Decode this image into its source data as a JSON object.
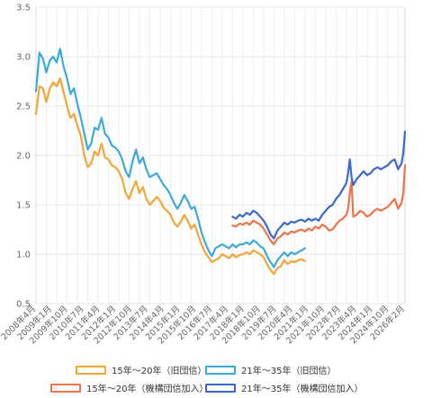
{
  "chart_data": {
    "type": "line",
    "title": "",
    "xlabel": "",
    "ylabel": "",
    "ylim": [
      0.5,
      3.5
    ],
    "yticks": [
      "0.5",
      "1.0",
      "1.5",
      "2.0",
      "2.5",
      "3.0",
      "3.5"
    ],
    "grid": true,
    "legend_position": "bottom",
    "x_tick_labels": [
      "2008年4月",
      "2009年1月",
      "2009年10月",
      "2010年7月",
      "2011年4月",
      "2012年1月",
      "2012年10月",
      "2013年7月",
      "2014年4月",
      "2015年1月",
      "2015年10月",
      "2016年7月",
      "2017年4月",
      "2018年1月",
      "2018年10月",
      "2019年7月",
      "2020年4月",
      "2021年1月",
      "2021年10月",
      "2022年7月",
      "2023年4月",
      "2024年1月",
      "2024年10月",
      "2026年2月"
    ],
    "series": [
      {
        "name": "15年～20年（旧団信）",
        "color": "#f5a537",
        "points": [
          [
            "2008-04",
            2.42
          ],
          [
            "2008-06",
            2.7
          ],
          [
            "2008-08",
            2.68
          ],
          [
            "2008-10",
            2.54
          ],
          [
            "2008-12",
            2.68
          ],
          [
            "2009-02",
            2.74
          ],
          [
            "2009-04",
            2.7
          ],
          [
            "2009-06",
            2.78
          ],
          [
            "2009-08",
            2.64
          ],
          [
            "2009-10",
            2.5
          ],
          [
            "2009-12",
            2.38
          ],
          [
            "2010-02",
            2.42
          ],
          [
            "2010-04",
            2.3
          ],
          [
            "2010-06",
            2.2
          ],
          [
            "2010-08",
            2.0
          ],
          [
            "2010-10",
            1.88
          ],
          [
            "2010-12",
            1.92
          ],
          [
            "2011-02",
            2.04
          ],
          [
            "2011-04",
            2.0
          ],
          [
            "2011-06",
            2.12
          ],
          [
            "2011-08",
            1.98
          ],
          [
            "2011-10",
            1.96
          ],
          [
            "2011-12",
            1.9
          ],
          [
            "2012-02",
            1.88
          ],
          [
            "2012-04",
            1.84
          ],
          [
            "2012-06",
            1.76
          ],
          [
            "2012-08",
            1.62
          ],
          [
            "2012-10",
            1.56
          ],
          [
            "2012-12",
            1.66
          ],
          [
            "2013-02",
            1.74
          ],
          [
            "2013-04",
            1.62
          ],
          [
            "2013-06",
            1.68
          ],
          [
            "2013-08",
            1.56
          ],
          [
            "2013-10",
            1.5
          ],
          [
            "2013-12",
            1.54
          ],
          [
            "2014-02",
            1.58
          ],
          [
            "2014-04",
            1.54
          ],
          [
            "2014-06",
            1.47
          ],
          [
            "2014-08",
            1.44
          ],
          [
            "2014-10",
            1.4
          ],
          [
            "2014-12",
            1.32
          ],
          [
            "2015-02",
            1.28
          ],
          [
            "2015-04",
            1.33
          ],
          [
            "2015-06",
            1.4
          ],
          [
            "2015-08",
            1.34
          ],
          [
            "2015-10",
            1.26
          ],
          [
            "2015-12",
            1.3
          ],
          [
            "2016-02",
            1.2
          ],
          [
            "2016-04",
            1.1
          ],
          [
            "2016-06",
            1.02
          ],
          [
            "2016-08",
            0.97
          ],
          [
            "2016-10",
            0.92
          ],
          [
            "2016-12",
            0.94
          ],
          [
            "2017-02",
            0.96
          ],
          [
            "2017-04",
            1.0
          ],
          [
            "2017-06",
            0.98
          ],
          [
            "2017-08",
            0.96
          ],
          [
            "2017-10",
            1.0
          ],
          [
            "2017-12",
            0.97
          ],
          [
            "2018-02",
            0.99
          ],
          [
            "2018-04",
            1.0
          ],
          [
            "2018-06",
            1.02
          ],
          [
            "2018-08",
            1.0
          ],
          [
            "2018-10",
            1.04
          ],
          [
            "2018-12",
            1.02
          ],
          [
            "2019-02",
            1.0
          ],
          [
            "2019-04",
            0.97
          ],
          [
            "2019-06",
            0.9
          ],
          [
            "2019-08",
            0.84
          ],
          [
            "2019-10",
            0.8
          ],
          [
            "2019-12",
            0.86
          ],
          [
            "2020-02",
            0.88
          ],
          [
            "2020-04",
            0.94
          ],
          [
            "2020-06",
            0.9
          ],
          [
            "2020-08",
            0.93
          ],
          [
            "2020-10",
            0.92
          ],
          [
            "2020-12",
            0.94
          ],
          [
            "2021-02",
            0.95
          ],
          [
            "2021-04",
            0.93
          ]
        ]
      },
      {
        "name": "21年～35年（旧団信）",
        "color": "#3ba9dd",
        "points": [
          [
            "2008-04",
            2.65
          ],
          [
            "2008-06",
            3.04
          ],
          [
            "2008-08",
            2.98
          ],
          [
            "2008-10",
            2.84
          ],
          [
            "2008-12",
            2.96
          ],
          [
            "2009-02",
            3.0
          ],
          [
            "2009-04",
            2.94
          ],
          [
            "2009-06",
            3.08
          ],
          [
            "2009-08",
            2.9
          ],
          [
            "2009-10",
            2.78
          ],
          [
            "2009-12",
            2.62
          ],
          [
            "2010-02",
            2.68
          ],
          [
            "2010-04",
            2.52
          ],
          [
            "2010-06",
            2.38
          ],
          [
            "2010-08",
            2.22
          ],
          [
            "2010-10",
            2.06
          ],
          [
            "2010-12",
            2.12
          ],
          [
            "2011-02",
            2.28
          ],
          [
            "2011-04",
            2.26
          ],
          [
            "2011-06",
            2.38
          ],
          [
            "2011-08",
            2.22
          ],
          [
            "2011-10",
            2.18
          ],
          [
            "2011-12",
            2.1
          ],
          [
            "2012-02",
            2.08
          ],
          [
            "2012-04",
            2.04
          ],
          [
            "2012-06",
            1.96
          ],
          [
            "2012-08",
            1.84
          ],
          [
            "2012-10",
            1.78
          ],
          [
            "2012-12",
            1.94
          ],
          [
            "2013-02",
            2.06
          ],
          [
            "2013-04",
            1.92
          ],
          [
            "2013-06",
            1.98
          ],
          [
            "2013-08",
            1.86
          ],
          [
            "2013-10",
            1.78
          ],
          [
            "2013-12",
            1.8
          ],
          [
            "2014-02",
            1.82
          ],
          [
            "2014-04",
            1.76
          ],
          [
            "2014-06",
            1.7
          ],
          [
            "2014-08",
            1.66
          ],
          [
            "2014-10",
            1.6
          ],
          [
            "2014-12",
            1.52
          ],
          [
            "2015-02",
            1.46
          ],
          [
            "2015-04",
            1.52
          ],
          [
            "2015-06",
            1.6
          ],
          [
            "2015-08",
            1.54
          ],
          [
            "2015-10",
            1.46
          ],
          [
            "2015-12",
            1.48
          ],
          [
            "2016-02",
            1.36
          ],
          [
            "2016-04",
            1.22
          ],
          [
            "2016-06",
            1.12
          ],
          [
            "2016-08",
            1.04
          ],
          [
            "2016-10",
            0.98
          ],
          [
            "2016-12",
            1.06
          ],
          [
            "2017-02",
            1.08
          ],
          [
            "2017-04",
            1.1
          ],
          [
            "2017-06",
            1.08
          ],
          [
            "2017-08",
            1.06
          ],
          [
            "2017-10",
            1.1
          ],
          [
            "2017-12",
            1.07
          ],
          [
            "2018-02",
            1.1
          ],
          [
            "2018-04",
            1.1
          ],
          [
            "2018-06",
            1.12
          ],
          [
            "2018-08",
            1.1
          ],
          [
            "2018-10",
            1.14
          ],
          [
            "2018-12",
            1.12
          ],
          [
            "2019-02",
            1.08
          ],
          [
            "2019-04",
            1.06
          ],
          [
            "2019-06",
            0.98
          ],
          [
            "2019-08",
            0.92
          ],
          [
            "2019-10",
            0.87
          ],
          [
            "2019-12",
            0.94
          ],
          [
            "2020-02",
            0.98
          ],
          [
            "2020-04",
            1.02
          ],
          [
            "2020-06",
            0.98
          ],
          [
            "2020-08",
            1.02
          ],
          [
            "2020-10",
            1.0
          ],
          [
            "2020-12",
            1.02
          ],
          [
            "2021-02",
            1.04
          ],
          [
            "2021-04",
            1.06
          ]
        ]
      },
      {
        "name": "15年～20年（機構団信加入）",
        "color": "#ee7348",
        "points": [
          [
            "2017-10",
            1.29
          ],
          [
            "2017-12",
            1.28
          ],
          [
            "2018-02",
            1.31
          ],
          [
            "2018-04",
            1.3
          ],
          [
            "2018-06",
            1.32
          ],
          [
            "2018-08",
            1.3
          ],
          [
            "2018-10",
            1.34
          ],
          [
            "2018-12",
            1.32
          ],
          [
            "2019-02",
            1.3
          ],
          [
            "2019-04",
            1.26
          ],
          [
            "2019-06",
            1.2
          ],
          [
            "2019-08",
            1.14
          ],
          [
            "2019-10",
            1.1
          ],
          [
            "2019-12",
            1.16
          ],
          [
            "2020-02",
            1.18
          ],
          [
            "2020-04",
            1.22
          ],
          [
            "2020-06",
            1.2
          ],
          [
            "2020-08",
            1.23
          ],
          [
            "2020-10",
            1.22
          ],
          [
            "2020-12",
            1.24
          ],
          [
            "2021-02",
            1.25
          ],
          [
            "2021-04",
            1.23
          ],
          [
            "2021-06",
            1.26
          ],
          [
            "2021-08",
            1.24
          ],
          [
            "2021-10",
            1.28
          ],
          [
            "2021-12",
            1.26
          ],
          [
            "2022-02",
            1.3
          ],
          [
            "2022-04",
            1.28
          ],
          [
            "2022-06",
            1.24
          ],
          [
            "2022-08",
            1.25
          ],
          [
            "2022-10",
            1.3
          ],
          [
            "2022-12",
            1.34
          ],
          [
            "2023-02",
            1.36
          ],
          [
            "2023-04",
            1.4
          ],
          [
            "2023-05",
            1.46
          ],
          [
            "2023-06",
            1.62
          ],
          [
            "2023-07",
            1.74
          ],
          [
            "2023-08",
            1.38
          ],
          [
            "2023-10",
            1.4
          ],
          [
            "2023-12",
            1.44
          ],
          [
            "2024-02",
            1.42
          ],
          [
            "2024-04",
            1.38
          ],
          [
            "2024-06",
            1.4
          ],
          [
            "2024-08",
            1.44
          ],
          [
            "2024-10",
            1.46
          ],
          [
            "2024-12",
            1.44
          ],
          [
            "2025-02",
            1.46
          ],
          [
            "2025-04",
            1.48
          ],
          [
            "2025-06",
            1.52
          ],
          [
            "2025-08",
            1.56
          ],
          [
            "2025-10",
            1.46
          ],
          [
            "2025-12",
            1.52
          ],
          [
            "2026-01",
            1.62
          ],
          [
            "2026-02",
            1.9
          ]
        ]
      },
      {
        "name": "21年～35年（機構団信加入）",
        "color": "#3a68cc",
        "points": [
          [
            "2017-10",
            1.38
          ],
          [
            "2017-12",
            1.36
          ],
          [
            "2018-02",
            1.4
          ],
          [
            "2018-04",
            1.38
          ],
          [
            "2018-06",
            1.42
          ],
          [
            "2018-08",
            1.4
          ],
          [
            "2018-10",
            1.44
          ],
          [
            "2018-12",
            1.42
          ],
          [
            "2019-02",
            1.38
          ],
          [
            "2019-04",
            1.34
          ],
          [
            "2019-06",
            1.28
          ],
          [
            "2019-08",
            1.2
          ],
          [
            "2019-10",
            1.16
          ],
          [
            "2019-12",
            1.24
          ],
          [
            "2020-02",
            1.28
          ],
          [
            "2020-04",
            1.32
          ],
          [
            "2020-06",
            1.3
          ],
          [
            "2020-08",
            1.33
          ],
          [
            "2020-10",
            1.32
          ],
          [
            "2020-12",
            1.34
          ],
          [
            "2021-02",
            1.35
          ],
          [
            "2021-04",
            1.33
          ],
          [
            "2021-06",
            1.36
          ],
          [
            "2021-08",
            1.34
          ],
          [
            "2021-10",
            1.36
          ],
          [
            "2021-12",
            1.34
          ],
          [
            "2022-02",
            1.4
          ],
          [
            "2022-04",
            1.44
          ],
          [
            "2022-06",
            1.48
          ],
          [
            "2022-08",
            1.5
          ],
          [
            "2022-10",
            1.56
          ],
          [
            "2022-12",
            1.6
          ],
          [
            "2023-02",
            1.66
          ],
          [
            "2023-04",
            1.72
          ],
          [
            "2023-05",
            1.82
          ],
          [
            "2023-06",
            1.96
          ],
          [
            "2023-07",
            1.78
          ],
          [
            "2023-08",
            1.7
          ],
          [
            "2023-10",
            1.76
          ],
          [
            "2023-12",
            1.8
          ],
          [
            "2024-02",
            1.84
          ],
          [
            "2024-04",
            1.8
          ],
          [
            "2024-06",
            1.82
          ],
          [
            "2024-08",
            1.86
          ],
          [
            "2024-10",
            1.88
          ],
          [
            "2024-12",
            1.86
          ],
          [
            "2025-02",
            1.88
          ],
          [
            "2025-04",
            1.9
          ],
          [
            "2025-06",
            1.94
          ],
          [
            "2025-08",
            1.96
          ],
          [
            "2025-10",
            1.86
          ],
          [
            "2025-12",
            1.92
          ],
          [
            "2026-01",
            2.02
          ],
          [
            "2026-02",
            2.24
          ]
        ]
      }
    ]
  }
}
